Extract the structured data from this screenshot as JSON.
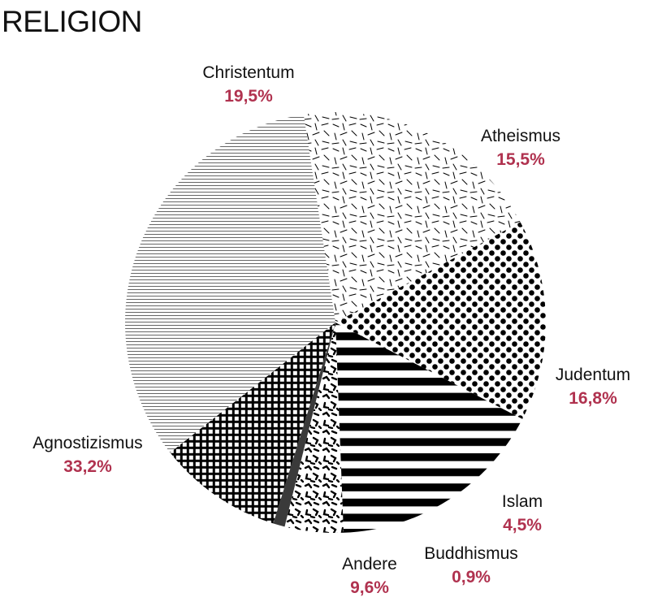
{
  "title": "RELIGION",
  "colors": {
    "value_text": "#b0324f",
    "ink": "#000000",
    "buddhismus_fill": "#3a3a3a"
  },
  "chart_data": {
    "type": "pie",
    "title": "RELIGION",
    "slices": [
      {
        "label": "Atheismus",
        "value_label": "15,5%",
        "value": 15.5,
        "pattern": "dots"
      },
      {
        "label": "Judentum",
        "value_label": "16,8%",
        "value": 16.8,
        "pattern": "stripes"
      },
      {
        "label": "Islam",
        "value_label": "4,5%",
        "value": 4.5,
        "pattern": "confetti"
      },
      {
        "label": "Buddhismus",
        "value_label": "0,9%",
        "value": 0.9,
        "pattern": "solid"
      },
      {
        "label": "Andere",
        "value_label": "9,6%",
        "value": 9.6,
        "pattern": "grid"
      },
      {
        "label": "Agnostizismus",
        "value_label": "33,2%",
        "value": 33.2,
        "pattern": "fine-lines"
      },
      {
        "label": "Christentum",
        "value_label": "19,5%",
        "value": 19.5,
        "pattern": "dashes"
      }
    ]
  }
}
